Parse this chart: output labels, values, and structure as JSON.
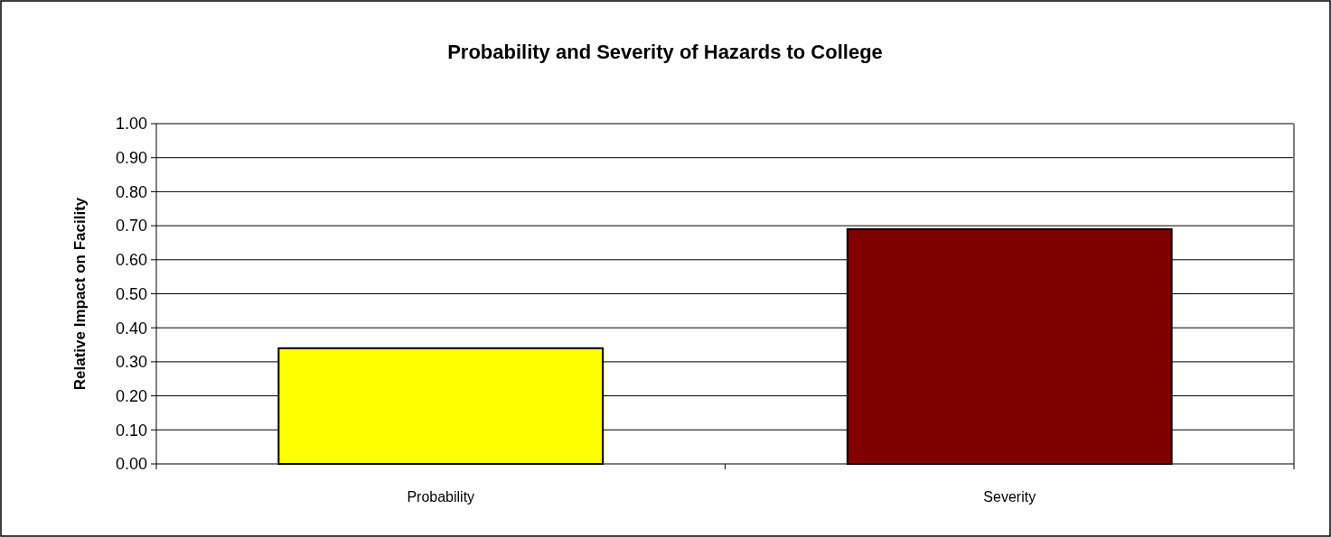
{
  "chart_data": {
    "type": "bar",
    "title": "Probability and Severity of Hazards to College",
    "ylabel": "Relative Impact on Facility",
    "categories": [
      "Probability",
      "Severity"
    ],
    "values": [
      0.34,
      0.69
    ],
    "colors": [
      "#ffff00",
      "#800000"
    ],
    "ylim": [
      0,
      1
    ],
    "yticks": [
      {
        "value": 0,
        "label": "0.00"
      },
      {
        "value": 0.1,
        "label": "0.10"
      },
      {
        "value": 0.2,
        "label": "0.20"
      },
      {
        "value": 0.3,
        "label": "0.30"
      },
      {
        "value": 0.4,
        "label": "0.40"
      },
      {
        "value": 0.5,
        "label": "0.50"
      },
      {
        "value": 0.6,
        "label": "0.60"
      },
      {
        "value": 0.7,
        "label": "0.70"
      },
      {
        "value": 0.8,
        "label": "0.80"
      },
      {
        "value": 0.9,
        "label": "0.90"
      },
      {
        "value": 1,
        "label": "1.00"
      }
    ],
    "grid": "y"
  }
}
